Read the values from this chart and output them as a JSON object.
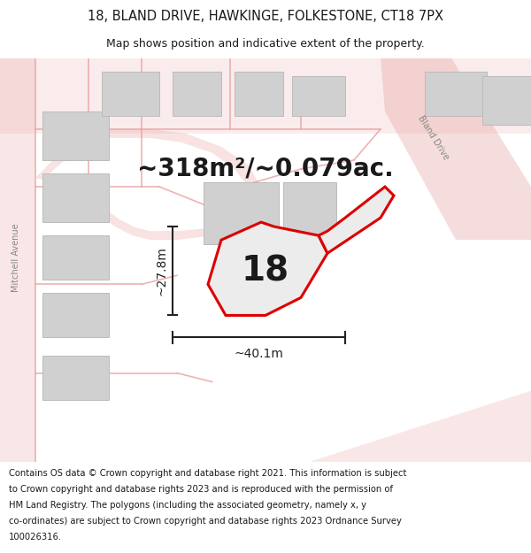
{
  "title_line1": "18, BLAND DRIVE, HAWKINGE, FOLKESTONE, CT18 7PX",
  "title_line2": "Map shows position and indicative extent of the property.",
  "footer_text": "Contains OS data © Crown copyright and database right 2021. This information is subject to Crown copyright and database rights 2023 and is reproduced with the permission of HM Land Registry. The polygons (including the associated geometry, namely x, y co-ordinates) are subject to Crown copyright and database rights 2023 Ordnance Survey 100026316.",
  "area_label": "~318m²/~0.079ac.",
  "number_label": "18",
  "dim_h": "~27.8m",
  "dim_w": "~40.1m",
  "map_bg": "#ffffff",
  "road_color": "#e8a0a0",
  "building_color": "#d0d0d0",
  "building_edge": "#bbbbbb",
  "highlight_color": "#dd0000",
  "text_color": "#1a1a1a",
  "dim_color": "#222222",
  "title_fontsize": 10.5,
  "subtitle_fontsize": 9,
  "footer_fontsize": 7.2,
  "area_fontsize": 20,
  "number_fontsize": 28,
  "dim_fontsize": 10,
  "street_label_fontsize": 7,
  "street_label_color": "#888888"
}
